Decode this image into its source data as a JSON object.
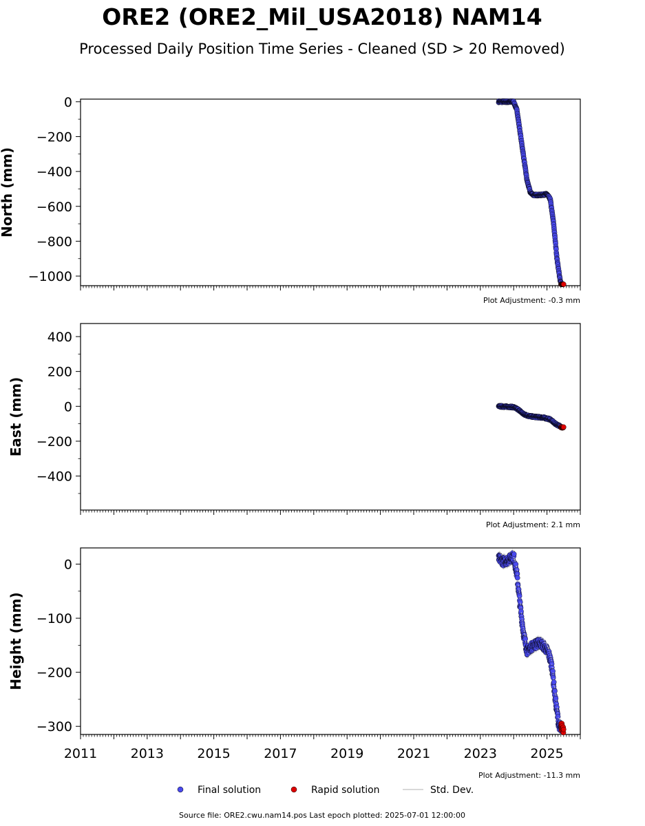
{
  "title": "ORE2 (ORE2_Mil_USA2018) NAM14",
  "subtitle": "Processed Daily Position Time Series - Cleaned (SD > 20 Removed)",
  "x_ticks": [
    "2011",
    "2013",
    "2015",
    "2017",
    "2019",
    "2021",
    "2023",
    "2025"
  ],
  "legend": {
    "final": "Final solution",
    "rapid": "Rapid solution",
    "std": "Std. Dev."
  },
  "footer": "Source file: ORE2.cwu.nam14.pos  Last epoch plotted: 2025-07-01 12:00:00",
  "colors": {
    "final": "#4a4aee",
    "rapid": "#dd0000",
    "std": "#cccccc",
    "edge": "#000000"
  },
  "chart_data": [
    {
      "type": "scatter",
      "ylabel": "North (mm)",
      "adjustment": "Plot Adjustment: -0.3 mm",
      "xlim": [
        2011.0,
        2026.0
      ],
      "ylim": [
        -1055,
        15
      ],
      "yticks": [
        0,
        -200,
        -400,
        -600,
        -800,
        -1000
      ],
      "yticklabels": [
        "0",
        "−200",
        "−400",
        "−600",
        "−800",
        "−1000"
      ],
      "final_profile": [
        [
          2023.55,
          0
        ],
        [
          2024.0,
          0
        ],
        [
          2024.1,
          -50
        ],
        [
          2024.25,
          -250
        ],
        [
          2024.4,
          -450
        ],
        [
          2024.5,
          -520
        ],
        [
          2024.6,
          -535
        ],
        [
          2024.8,
          -535
        ],
        [
          2025.0,
          -530
        ],
        [
          2025.1,
          -560
        ],
        [
          2025.2,
          -700
        ],
        [
          2025.3,
          -900
        ],
        [
          2025.4,
          -1030
        ],
        [
          2025.45,
          -1050
        ]
      ],
      "rapid_profile": [
        [
          2025.42,
          -1050
        ],
        [
          2025.5,
          -1055
        ]
      ]
    },
    {
      "type": "scatter",
      "ylabel": "East (mm)",
      "adjustment": "Plot Adjustment: 2.1 mm",
      "xlim": [
        2011.0,
        2026.0
      ],
      "ylim": [
        -595,
        475
      ],
      "yticks": [
        400,
        200,
        0,
        -200,
        -400
      ],
      "yticklabels": [
        "400",
        "200",
        "0",
        "−200",
        "−400"
      ],
      "final_profile": [
        [
          2023.55,
          0
        ],
        [
          2023.9,
          -3
        ],
        [
          2024.0,
          -5
        ],
        [
          2024.15,
          -20
        ],
        [
          2024.3,
          -45
        ],
        [
          2024.45,
          -55
        ],
        [
          2024.6,
          -60
        ],
        [
          2024.9,
          -65
        ],
        [
          2025.1,
          -75
        ],
        [
          2025.25,
          -100
        ],
        [
          2025.4,
          -115
        ],
        [
          2025.45,
          -120
        ]
      ],
      "rapid_profile": [
        [
          2025.42,
          -120
        ],
        [
          2025.5,
          -122
        ]
      ]
    },
    {
      "type": "scatter",
      "ylabel": "Height (mm)",
      "adjustment": "Plot Adjustment: -11.3 mm",
      "xlim": [
        2011.0,
        2026.0
      ],
      "ylim": [
        -315,
        30
      ],
      "yticks": [
        0,
        -100,
        -200,
        -300
      ],
      "yticklabels": [
        "0",
        "−100",
        "−200",
        "−300"
      ],
      "final_profile": [
        [
          2023.55,
          10
        ],
        [
          2023.7,
          5
        ],
        [
          2023.85,
          8
        ],
        [
          2024.0,
          15
        ],
        [
          2024.1,
          -20
        ],
        [
          2024.2,
          -80
        ],
        [
          2024.3,
          -130
        ],
        [
          2024.4,
          -160
        ],
        [
          2024.6,
          -150
        ],
        [
          2024.8,
          -145
        ],
        [
          2024.95,
          -155
        ],
        [
          2025.05,
          -165
        ],
        [
          2025.15,
          -190
        ],
        [
          2025.25,
          -250
        ],
        [
          2025.35,
          -295
        ],
        [
          2025.45,
          -310
        ]
      ],
      "rapid_profile": [
        [
          2025.42,
          -300
        ],
        [
          2025.5,
          -305
        ]
      ],
      "noise_mm": 8
    }
  ]
}
